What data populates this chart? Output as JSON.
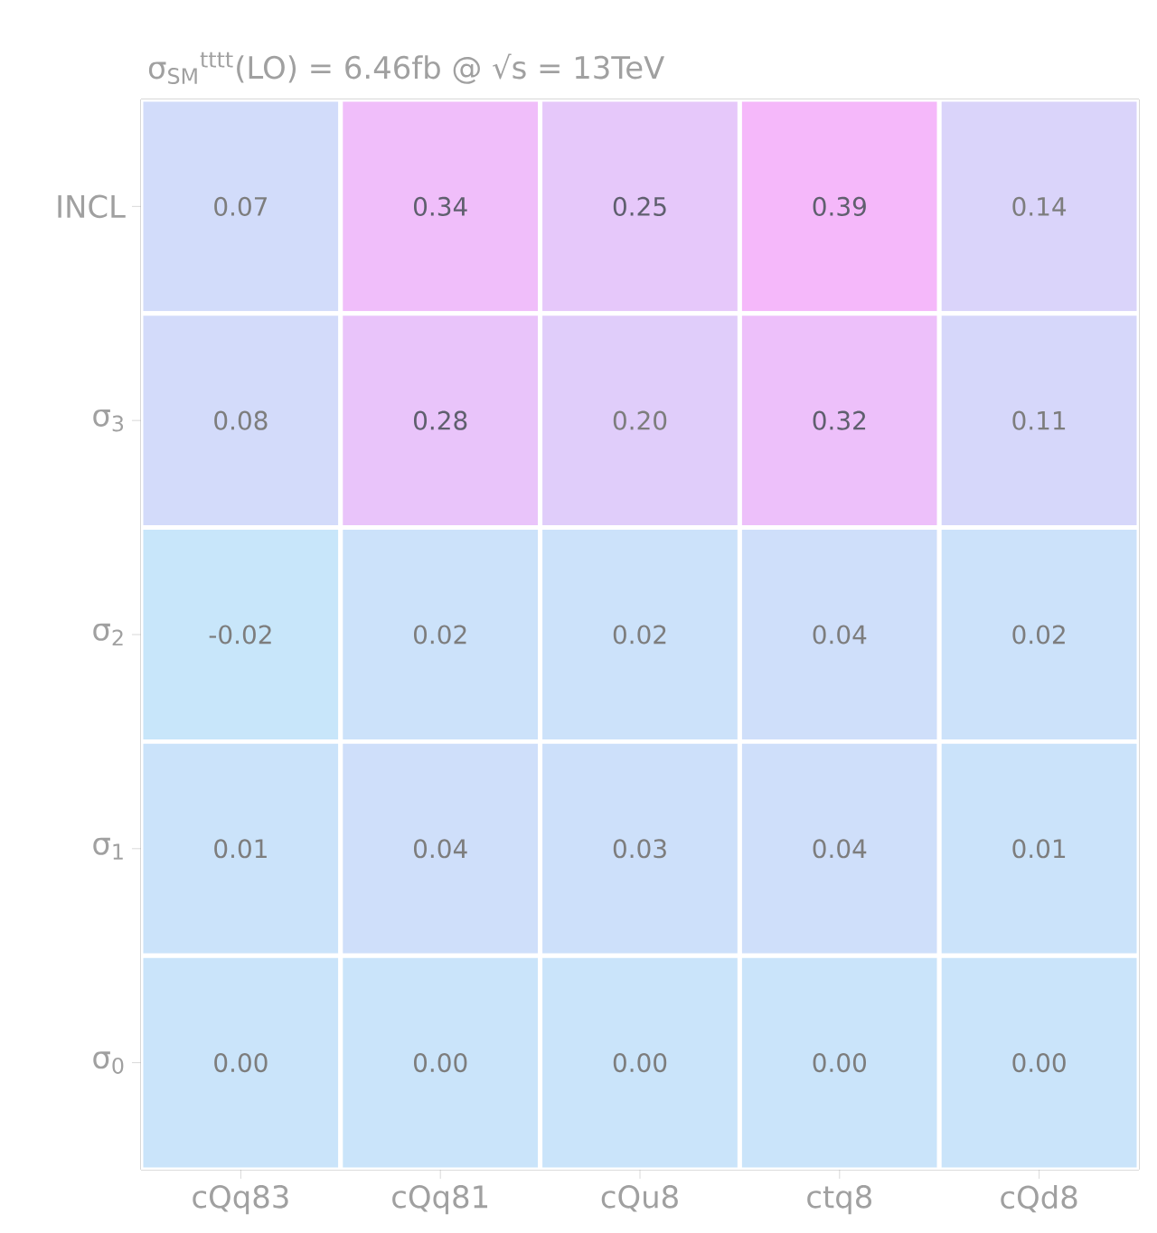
{
  "chart_data": {
    "type": "heatmap",
    "title": "σ$_{SM}$$^{tttt}$(LO) = 6.46fb @ √s = 13TeV",
    "categories": [
      "cQq83",
      "cQq81",
      "cQu8",
      "ctq8",
      "cQd8"
    ],
    "y_categories": [
      "INCL",
      "σ$_{3}$",
      "σ$_{2}$",
      "σ$_{1}$",
      "σ$_{0}$"
    ],
    "cells": [
      [
        0.07,
        0.34,
        0.25,
        0.39,
        0.14
      ],
      [
        0.08,
        0.28,
        0.2,
        0.32,
        0.11
      ],
      [
        -0.02,
        0.02,
        0.02,
        0.04,
        0.02
      ],
      [
        0.01,
        0.04,
        0.03,
        0.04,
        0.01
      ],
      [
        0.0,
        0.0,
        0.0,
        0.0,
        0.0
      ]
    ],
    "cell_labels": [
      [
        "0.07",
        "0.34",
        "0.25",
        "0.39",
        "0.14"
      ],
      [
        "0.08",
        "0.28",
        "0.20",
        "0.32",
        "0.11"
      ],
      [
        "-0.02",
        "0.02",
        "0.02",
        "0.04",
        "0.02"
      ],
      [
        "0.01",
        "0.04",
        "0.03",
        "0.04",
        "0.01"
      ],
      [
        "0.00",
        "0.00",
        "0.00",
        "0.00",
        "0.00"
      ]
    ],
    "colors": [
      "#c8e6fa",
      "#f5b8fa"
    ]
  }
}
